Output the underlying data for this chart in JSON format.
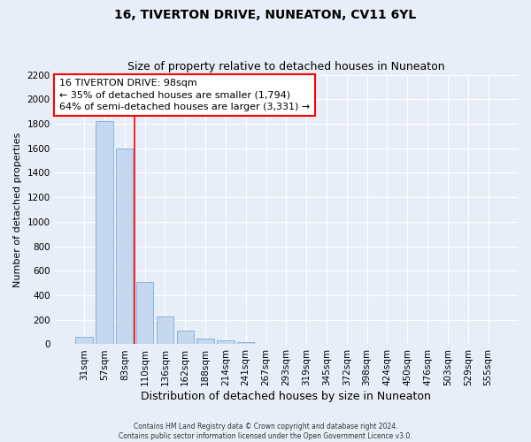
{
  "title1": "16, TIVERTON DRIVE, NUNEATON, CV11 6YL",
  "title2": "Size of property relative to detached houses in Nuneaton",
  "xlabel": "Distribution of detached houses by size in Nuneaton",
  "ylabel": "Number of detached properties",
  "categories": [
    "31sqm",
    "57sqm",
    "83sqm",
    "110sqm",
    "136sqm",
    "162sqm",
    "188sqm",
    "214sqm",
    "241sqm",
    "267sqm",
    "293sqm",
    "319sqm",
    "345sqm",
    "372sqm",
    "398sqm",
    "424sqm",
    "450sqm",
    "476sqm",
    "503sqm",
    "529sqm",
    "555sqm"
  ],
  "values": [
    60,
    1820,
    1600,
    510,
    230,
    110,
    50,
    30,
    20,
    0,
    0,
    0,
    0,
    0,
    0,
    0,
    0,
    0,
    0,
    0,
    0
  ],
  "bar_color": "#c5d8f0",
  "bar_edge_color": "#7aadd4",
  "redline_x": 2.5,
  "ylim": [
    0,
    2200
  ],
  "yticks": [
    0,
    200,
    400,
    600,
    800,
    1000,
    1200,
    1400,
    1600,
    1800,
    2000,
    2200
  ],
  "ann_title": "16 TIVERTON DRIVE: 98sqm",
  "ann_line2": "← 35% of detached houses are smaller (1,794)",
  "ann_line3": "64% of semi-detached houses are larger (3,331) →",
  "footer1": "Contains HM Land Registry data © Crown copyright and database right 2024.",
  "footer2": "Contains public sector information licensed under the Open Government Licence v3.0.",
  "bg_color": "#e8eef8",
  "grid_color": "#ffffff",
  "title_fontsize": 10,
  "subtitle_fontsize": 9,
  "tick_fontsize": 7.5,
  "ylabel_fontsize": 8,
  "xlabel_fontsize": 9,
  "ann_fontsize": 8
}
